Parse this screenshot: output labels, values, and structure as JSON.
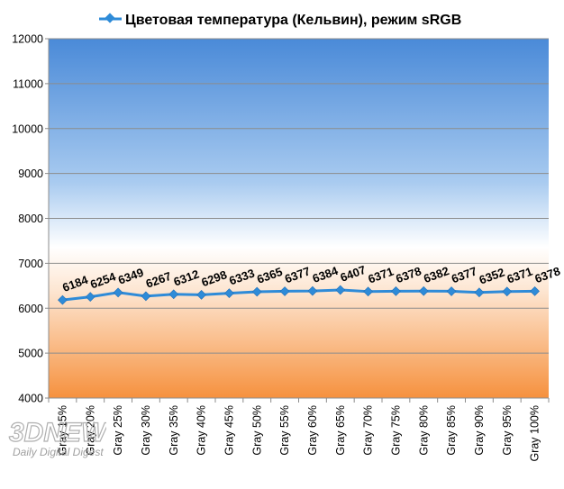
{
  "chart_data": {
    "type": "line",
    "title": "",
    "xlabel": "",
    "ylabel": "",
    "categories": [
      "Gray 15%",
      "Gray 20%",
      "Gray 25%",
      "Gray 30%",
      "Gray 35%",
      "Gray 40%",
      "Gray 45%",
      "Gray 50%",
      "Gray 55%",
      "Gray 60%",
      "Gray 65%",
      "Gray 70%",
      "Gray 75%",
      "Gray 80%",
      "Gray 85%",
      "Gray 90%",
      "Gray 95%",
      "Gray 100%"
    ],
    "series": [
      {
        "name": "Цветовая температура (Кельвин), режим sRGB",
        "values": [
          6184,
          6254,
          6349,
          6267,
          6312,
          6298,
          6333,
          6365,
          6377,
          6384,
          6407,
          6371,
          6378,
          6382,
          6377,
          6352,
          6371,
          6378
        ],
        "color": "#2e8bd8",
        "marker": "diamond",
        "data_labels": true
      }
    ],
    "ylim": [
      4000,
      12000
    ],
    "yticks": [
      4000,
      5000,
      6000,
      7000,
      8000,
      9000,
      10000,
      11000,
      12000
    ],
    "grid": true,
    "legend": "top-center",
    "colors": {
      "background_top": "#4f8fd9",
      "background_mid": "#ffffff",
      "background_bottom": "#f79a4a",
      "grid": "#8c8c8c"
    }
  },
  "watermark": {
    "text_main": "3DNEWS",
    "text_sub": "Daily Digital Digest"
  }
}
